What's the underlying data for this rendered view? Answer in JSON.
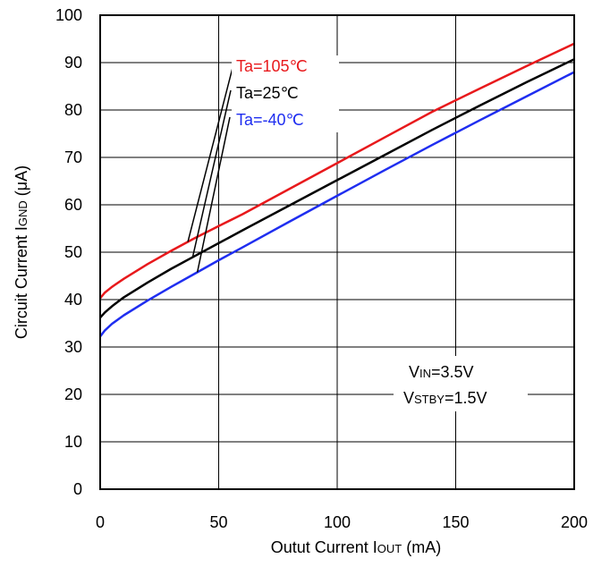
{
  "chart_data": {
    "type": "line",
    "title": "",
    "xlabel": {
      "main": "Outut Current I",
      "sub": "OUT",
      "unit": " (mA)"
    },
    "ylabel": {
      "main": "Circuit Current I",
      "sub": "GND",
      "unit": " (μA)"
    },
    "xlim": [
      0,
      200
    ],
    "ylim": [
      0,
      100
    ],
    "xticks": [
      "0",
      "50",
      "100",
      "150",
      "200"
    ],
    "yticks": [
      "0",
      "10",
      "20",
      "30",
      "40",
      "50",
      "60",
      "70",
      "80",
      "90",
      "100"
    ],
    "grid": true,
    "colors": {
      "red": "#e8191c",
      "black": "#000000",
      "blue": "#1f2ef0"
    },
    "series": [
      {
        "name": "Ta=105℃",
        "color": "#e8191c",
        "x": [
          0,
          2,
          5,
          10,
          20,
          30,
          40,
          50,
          60,
          80,
          100,
          120,
          140,
          160,
          180,
          200
        ],
        "y": [
          40.3,
          41.5,
          42.7,
          44.4,
          47.5,
          50.3,
          53.0,
          55.5,
          58.0,
          63.4,
          68.8,
          74.2,
          79.6,
          84.5,
          89.3,
          94.0
        ]
      },
      {
        "name": "Ta=25℃",
        "color": "#000000",
        "x": [
          0,
          2,
          5,
          10,
          20,
          30,
          40,
          50,
          60,
          80,
          100,
          120,
          140,
          160,
          180,
          200
        ],
        "y": [
          36.2,
          37.3,
          38.6,
          40.5,
          43.6,
          46.5,
          49.2,
          51.9,
          54.6,
          59.9,
          65.2,
          70.5,
          75.8,
          80.9,
          85.9,
          90.7
        ]
      },
      {
        "name": "Ta=-40℃",
        "color": "#1f2ef0",
        "x": [
          0,
          2,
          5,
          10,
          20,
          30,
          40,
          50,
          60,
          80,
          100,
          120,
          140,
          160,
          180,
          200
        ],
        "y": [
          32.2,
          33.5,
          34.9,
          36.7,
          39.8,
          42.7,
          45.5,
          48.3,
          51.0,
          56.5,
          61.9,
          67.3,
          72.6,
          77.8,
          82.9,
          88.0
        ]
      }
    ],
    "legend": [
      {
        "label": "Ta=105℃",
        "color": "#e8191c"
      },
      {
        "label": "Ta=25℃",
        "color": "#000000"
      },
      {
        "label": "Ta=-40℃",
        "color": "#1f2ef0"
      }
    ],
    "conditions": [
      {
        "main": "V",
        "sub": "IN",
        "rest": "=3.5V"
      },
      {
        "main": "V",
        "sub": "STBY",
        "rest": "=1.5V"
      }
    ]
  }
}
